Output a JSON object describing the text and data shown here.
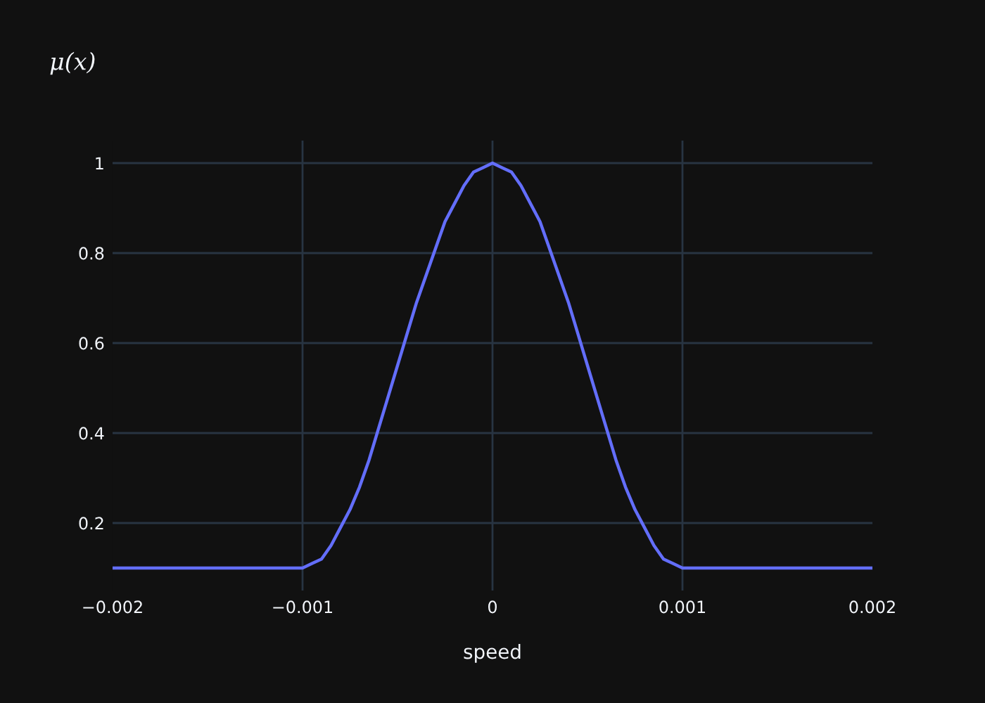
{
  "chart_data": {
    "type": "line",
    "title": "μ(x)",
    "xlabel": "speed",
    "series": [
      {
        "color": "#636efa",
        "x": [
          -0.002,
          -0.001,
          -0.00095,
          -0.0009,
          -0.00085,
          -0.0008,
          -0.00075,
          -0.0007,
          -0.00065,
          -0.0006,
          -0.00055,
          -0.0005,
          -0.00045,
          -0.0004,
          -0.00035,
          -0.0003,
          -0.00025,
          -0.0002,
          -0.00015,
          -0.0001,
          -5e-05,
          0,
          5e-05,
          0.0001,
          0.00015,
          0.0002,
          0.00025,
          0.0003,
          0.00035,
          0.0004,
          0.00045,
          0.0005,
          0.00055,
          0.0006,
          0.00065,
          0.0007,
          0.00075,
          0.0008,
          0.00085,
          0.0009,
          0.00095,
          0.001,
          0.002
        ],
        "values": [
          0.1,
          0.1,
          0.11,
          0.12,
          0.15,
          0.19,
          0.23,
          0.28,
          0.34,
          0.41,
          0.48,
          0.55,
          0.62,
          0.69,
          0.75,
          0.81,
          0.87,
          0.91,
          0.95,
          0.98,
          0.99,
          1.0,
          0.99,
          0.98,
          0.95,
          0.91,
          0.87,
          0.81,
          0.75,
          0.69,
          0.62,
          0.55,
          0.48,
          0.41,
          0.34,
          0.28,
          0.23,
          0.19,
          0.15,
          0.12,
          0.11,
          0.1,
          0.1
        ]
      }
    ],
    "xlim": [
      -0.002,
      0.002
    ],
    "xticks": [
      {
        "value": -0.002,
        "label": "−0.002"
      },
      {
        "value": -0.001,
        "label": "−0.001"
      },
      0,
      0.001,
      0.002
    ],
    "ylim": [
      0.05,
      1.05
    ],
    "yticks": [
      0.2,
      0.4,
      0.6,
      0.8,
      1
    ],
    "grid": true
  }
}
